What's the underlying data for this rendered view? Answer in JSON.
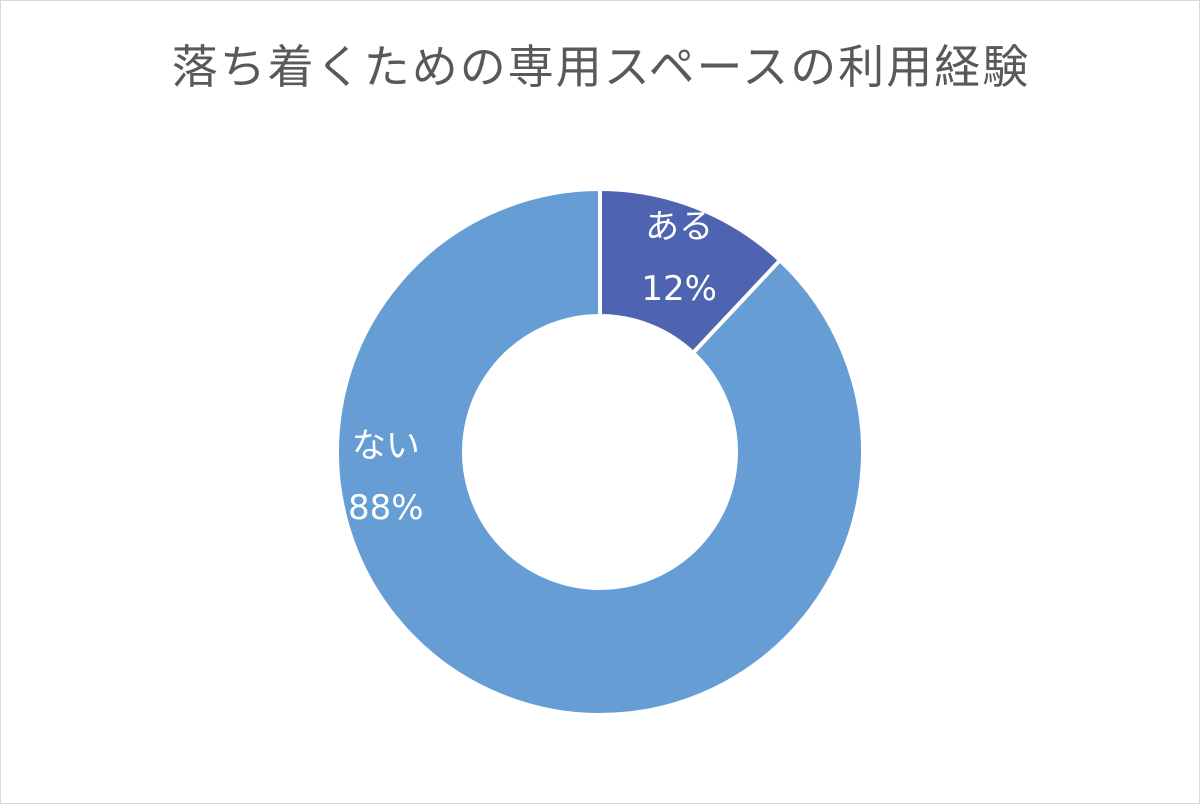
{
  "chart_data": {
    "type": "pie",
    "variant": "donut",
    "title": "落ち着くための専用スペースの利用経験",
    "slices": [
      {
        "label": "ある",
        "value": 12,
        "value_label": "12%",
        "color": "#4f64b0"
      },
      {
        "label": "ない",
        "value": 88,
        "value_label": "88%",
        "color": "#659dd4"
      }
    ],
    "legend": "none",
    "slice_border_color": "#ffffff"
  }
}
